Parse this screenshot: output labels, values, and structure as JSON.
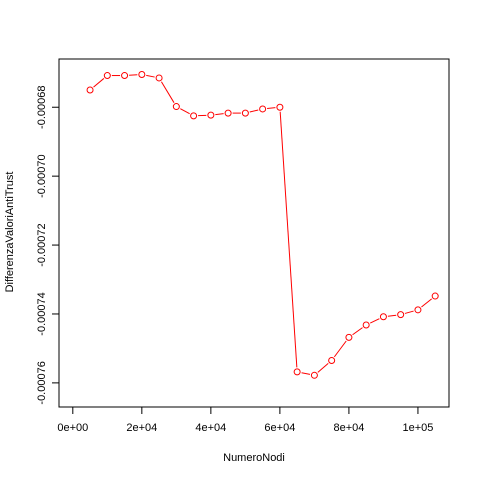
{
  "chart_data": {
    "type": "scatter",
    "title": "",
    "xlabel": "NumeroNodi",
    "ylabel": "DifferenzaValoriAntiTrust",
    "xlim": [
      -4000,
      109000
    ],
    "ylim": [
      -0.000767,
      -0.000666
    ],
    "x_ticks": [
      0,
      20000,
      40000,
      60000,
      80000,
      100000
    ],
    "x_tick_labels": [
      "0e+00",
      "2e+04",
      "4e+04",
      "6e+04",
      "8e+04",
      "1e+05"
    ],
    "y_ticks": [
      -0.00068,
      -0.0007,
      -0.00072,
      -0.00074,
      -0.00076
    ],
    "y_tick_labels": [
      "-0.00068",
      "-0.00070",
      "-0.00072",
      "-0.00074",
      "-0.00076"
    ],
    "grid": false,
    "series": [
      {
        "color": "#ff0000",
        "marker": "open-circle",
        "line": "connected",
        "points": [
          {
            "x": 5000,
            "y": -0.000675
          },
          {
            "x": 10000,
            "y": -0.0006708
          },
          {
            "x": 15000,
            "y": -0.0006708
          },
          {
            "x": 20000,
            "y": -0.0006705
          },
          {
            "x": 25000,
            "y": -0.0006715
          },
          {
            "x": 30000,
            "y": -0.0006798
          },
          {
            "x": 35000,
            "y": -0.0006825
          },
          {
            "x": 40000,
            "y": -0.0006823
          },
          {
            "x": 45000,
            "y": -0.0006817
          },
          {
            "x": 50000,
            "y": -0.0006817
          },
          {
            "x": 55000,
            "y": -0.0006805
          },
          {
            "x": 60000,
            "y": -0.00068
          },
          {
            "x": 65000,
            "y": -0.0007568
          },
          {
            "x": 70000,
            "y": -0.0007578
          },
          {
            "x": 75000,
            "y": -0.0007535
          },
          {
            "x": 80000,
            "y": -0.0007468
          },
          {
            "x": 85000,
            "y": -0.0007432
          },
          {
            "x": 90000,
            "y": -0.0007408
          },
          {
            "x": 95000,
            "y": -0.0007402
          },
          {
            "x": 100000,
            "y": -0.0007388
          },
          {
            "x": 105000,
            "y": -0.0007348
          }
        ]
      }
    ]
  }
}
